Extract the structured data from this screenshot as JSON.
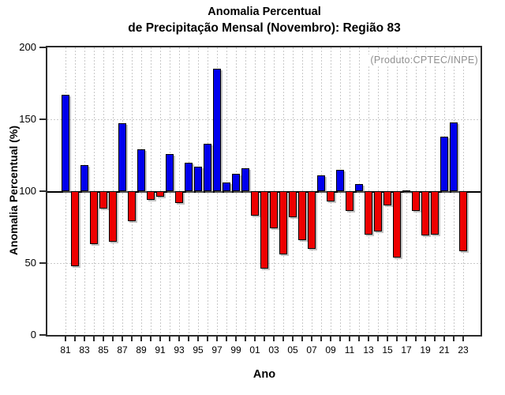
{
  "header": {
    "title_line1": "Anomalia Percentual",
    "title_line2": "de Precipitação Mensal (Novembro): Região 83",
    "product_label": "(Produto:CPTEC/INPE)"
  },
  "axes": {
    "y_label": "Anomalia Percentual (%)",
    "x_label": "Ano",
    "y_ticks": [
      0,
      50,
      100,
      150,
      200
    ],
    "x_tick_label_every": 2
  },
  "chart_data": {
    "type": "bar",
    "title": "Anomalia Percentual de Precipitação Mensal (Novembro): Região 83",
    "xlabel": "Ano",
    "ylabel": "Anomalia Percentual (%)",
    "ylim": [
      0,
      200
    ],
    "baseline": 100,
    "grid": true,
    "annotation": "(Produto:CPTEC/INPE)",
    "legend": "none",
    "categories": [
      "81",
      "82",
      "83",
      "84",
      "85",
      "86",
      "87",
      "88",
      "89",
      "90",
      "91",
      "92",
      "93",
      "94",
      "95",
      "96",
      "97",
      "98",
      "99",
      "00",
      "01",
      "02",
      "03",
      "04",
      "05",
      "06",
      "07",
      "08",
      "09",
      "10",
      "11",
      "12",
      "13",
      "14",
      "15",
      "16",
      "17",
      "18",
      "19",
      "20",
      "21",
      "22",
      "23"
    ],
    "values": [
      167,
      48,
      118,
      63,
      88,
      65,
      147,
      79,
      129,
      94,
      96,
      126,
      92,
      120,
      117,
      133,
      185,
      106,
      112,
      116,
      83,
      46,
      74,
      56,
      82,
      66,
      60,
      111,
      93,
      115,
      86,
      105,
      70,
      72,
      90,
      54,
      100.5,
      86,
      69,
      70,
      138,
      148,
      58
    ],
    "colors": {
      "above_baseline": "#0000ee",
      "below_baseline": "#ee0000",
      "bar_outline": "#000000",
      "gridline": "#c9c9c9",
      "axis_box": "#2b2b2b",
      "annotation_text": "#8f8f8f"
    }
  }
}
